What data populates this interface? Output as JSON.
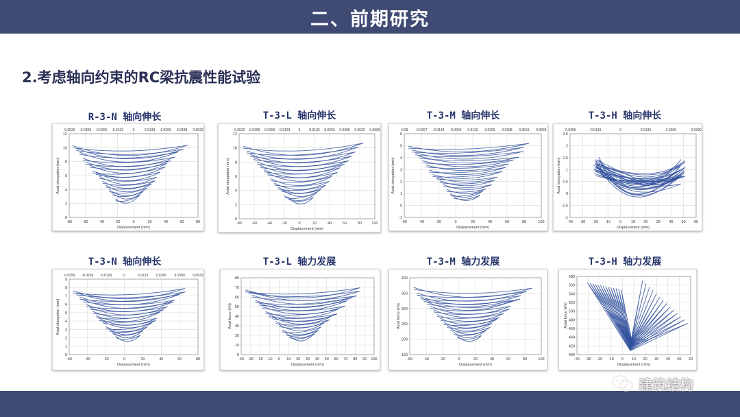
{
  "header": {
    "title": "二、前期研究"
  },
  "section": {
    "title": "2.考虑轴向约束的RC梁抗震性能试验"
  },
  "watermark": {
    "text": "建筑结构",
    "icon": "wechat-icon"
  },
  "colors": {
    "bar": "#3f4a73",
    "curve": "#2f4f9c",
    "title": "#26356b"
  },
  "charts": [
    {
      "title": "R-3-N 轴向伸长",
      "ylabel": "Axial elongation (mm)",
      "xlabel": "Displacement (mm)",
      "xticks": [
        "-80",
        "-60",
        "-40",
        "-20",
        "0",
        "20",
        "40",
        "60",
        "80"
      ],
      "yticks": [
        "0",
        "2",
        "4",
        "6",
        "8",
        "10",
        "12"
      ],
      "topticks": [
        "-0.0532",
        "-0.0399",
        "-0.0266",
        "-0.0133",
        "0",
        "0.0133",
        "0.0266",
        "0.0399",
        "0.0532"
      ]
    },
    {
      "title": "T-3-L 轴向伸长",
      "ylabel": "Axial elongation (mm)",
      "xlabel": "Displacement (mm)",
      "xticks": [
        "-80",
        "-60",
        "-40",
        "-20",
        "0",
        "20",
        "40",
        "60",
        "80",
        "100"
      ],
      "yticks": [
        "0",
        "2",
        "4",
        "6",
        "8",
        "10",
        "12"
      ],
      "topticks": [
        "-0.0532",
        "-0.0399",
        "-0.0266",
        "-0.0133",
        "0",
        "0.0133",
        "0.0266",
        "0.0399",
        "0.0532",
        "0.0665"
      ]
    },
    {
      "title": "T-3-M 轴向伸长",
      "ylabel": "Axial elongation (mm)",
      "xlabel": "Displacement (mm)",
      "xticks": [
        "-60",
        "-40",
        "-20",
        "0",
        "20",
        "40",
        "60",
        "80",
        "100"
      ],
      "yticks": [
        "-1",
        "0",
        "1",
        "2",
        "3",
        "4",
        "5",
        "6"
      ],
      "topticks": [
        "-0.08",
        "-0.0267",
        "-0.0134",
        "-0.0001",
        "0.0132",
        "0.0265",
        "0.0398",
        "0.0531",
        "0.0664"
      ]
    },
    {
      "title": "T-3-H 轴向伸长",
      "ylabel": "Axial elongation (mm)",
      "xlabel": "Displacement (mm)",
      "xticks": [
        "-40",
        "-30",
        "-20",
        "-10",
        "0",
        "10",
        "20",
        "30",
        "40",
        "50",
        "60"
      ],
      "yticks": [
        "-1",
        "-0.5",
        "0",
        "0.5",
        "1",
        "1.5",
        "2",
        "2.5"
      ],
      "topticks": [
        "-0.0266",
        "-0.0133",
        "0",
        "0.0133",
        "0.0266",
        "0.0399"
      ]
    },
    {
      "title": "T-3-N 轴向伸长",
      "ylabel": "Axial elongation (mm)",
      "xlabel": "Displacement (mm)",
      "xticks": [
        "-60",
        "-40",
        "-20",
        "0",
        "20",
        "40",
        "60",
        "80"
      ],
      "yticks": [
        "0",
        "1",
        "2",
        "3",
        "4",
        "5",
        "6",
        "7",
        "8",
        "9"
      ],
      "topticks": [
        "-0.0399",
        "-0.0266",
        "-0.0133",
        "0",
        "0.0133",
        "0.0266",
        "0.0399",
        "0.0532"
      ]
    },
    {
      "title": "T-3-L 轴力发展",
      "ylabel": "Axial force (kN)",
      "xlabel": "Displacement (mm)",
      "xticks": [
        "-40",
        "-30",
        "-20",
        "-10",
        "0",
        "10",
        "20",
        "30",
        "40",
        "50",
        "60",
        "70",
        "80",
        "90",
        "100"
      ],
      "yticks": [
        "0",
        "10",
        "20",
        "30",
        "40",
        "50",
        "60",
        "70",
        "80"
      ],
      "topticks": []
    },
    {
      "title": "T-3-M 轴力发展",
      "ylabel": "Axial force (kN)",
      "xlabel": "Displacement (mm)",
      "xticks": [
        "-60",
        "-40",
        "-20",
        "0",
        "20",
        "40",
        "60",
        "80",
        "100"
      ],
      "yticks": [
        "150",
        "200",
        "250",
        "300",
        "350",
        "400"
      ],
      "topticks": []
    },
    {
      "title": "T-3-H 轴力发展",
      "ylabel": "Axial force (kN)",
      "xlabel": "Displacement (mm)",
      "xticks": [
        "-40",
        "-30",
        "-20",
        "-10",
        "0",
        "10",
        "20",
        "30",
        "40",
        "50",
        "60"
      ],
      "yticks": [
        "400",
        "420",
        "440",
        "460",
        "480",
        "500",
        "520",
        "540",
        "560",
        "580"
      ],
      "topticks": []
    }
  ]
}
